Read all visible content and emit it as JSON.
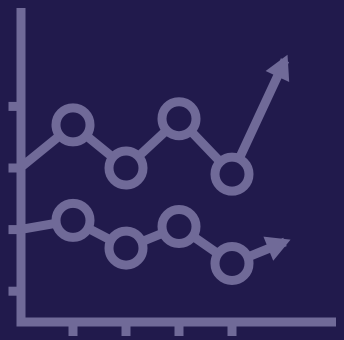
{
  "colors": {
    "background": "#211a4c",
    "stroke": "#706a98"
  },
  "chart_data": {
    "type": "line",
    "x": [
      0,
      1,
      2,
      3,
      4,
      5
    ],
    "xlim": [
      0,
      6
    ],
    "ylim": [
      0,
      10
    ],
    "grid": false,
    "legend": "none",
    "x_ticks": [
      1,
      2,
      3,
      4
    ],
    "y_ticks": [
      1,
      3,
      5,
      7
    ],
    "series": [
      {
        "values": [
          5.0,
          6.4,
          5.0,
          6.6,
          4.8,
          8.5
        ],
        "markers": [
          false,
          true,
          true,
          true,
          true,
          false
        ],
        "end_arrow": true
      },
      {
        "values": [
          3.0,
          3.3,
          2.4,
          3.1,
          1.9,
          2.6
        ],
        "markers": [
          false,
          true,
          true,
          true,
          true,
          false
        ],
        "end_arrow": true
      }
    ]
  }
}
